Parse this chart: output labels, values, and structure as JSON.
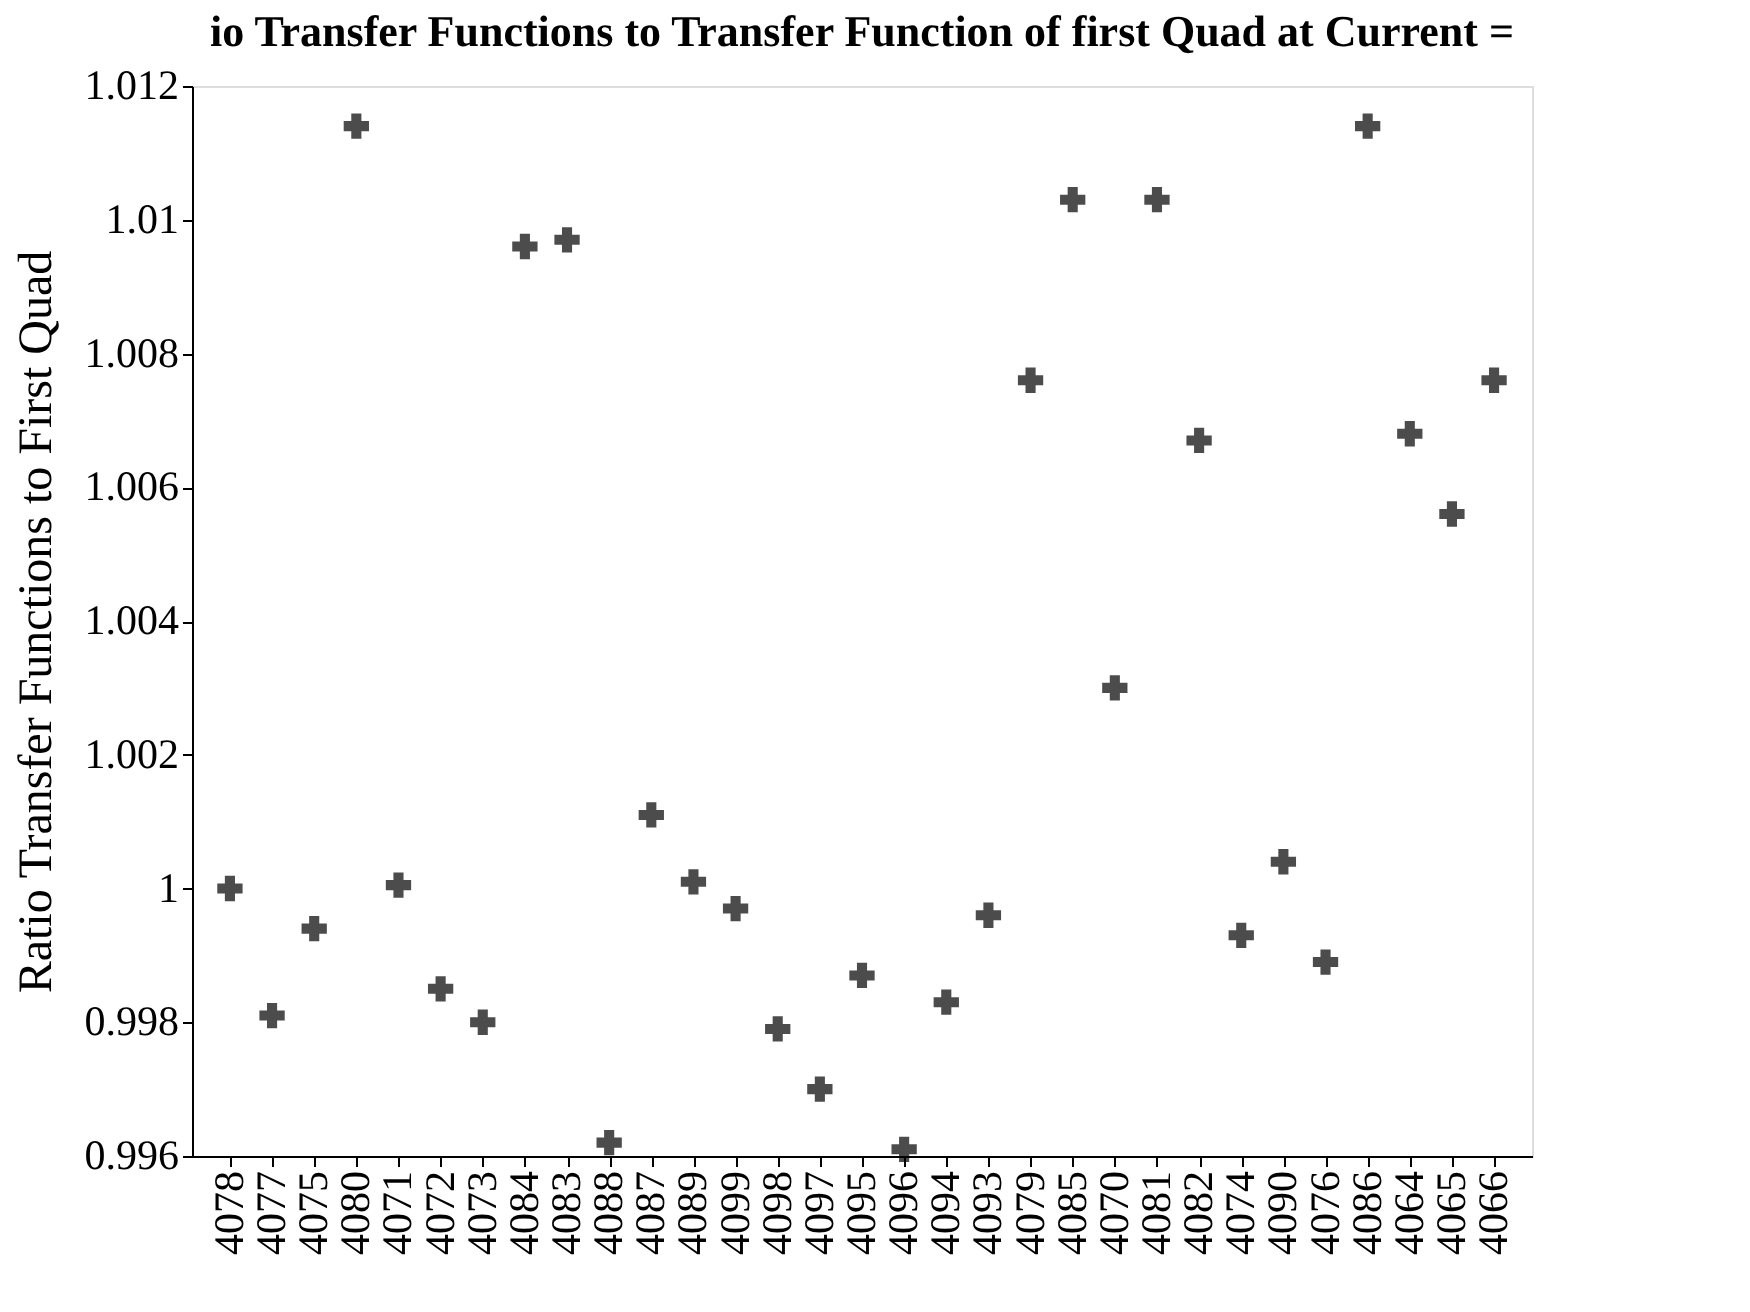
{
  "chart_data": {
    "type": "scatter",
    "title": "io Transfer Functions to Transfer Function of first Quad at Current  =",
    "ylabel": "Ratio Transfer Functions to First Quad",
    "categories": [
      "4078",
      "4077",
      "4075",
      "4080",
      "4071",
      "4072",
      "4073",
      "4084",
      "4083",
      "4088",
      "4087",
      "4089",
      "4099",
      "4098",
      "4097",
      "4095",
      "4096",
      "4094",
      "4093",
      "4079",
      "4085",
      "4070",
      "4081",
      "4082",
      "4074",
      "4090",
      "4076",
      "4086",
      "4064",
      "4065",
      "4066"
    ],
    "series": [
      {
        "color": "#000000",
        "values": [
          1.0,
          0.9981,
          0.9994,
          1.0114,
          1.00005,
          0.9985,
          0.998,
          1.0096,
          1.0097,
          0.9962,
          1.0011,
          1.0001,
          0.9997,
          0.9979,
          0.997,
          0.9987,
          0.9961,
          0.9983,
          0.9996,
          1.0076,
          1.0103,
          1.003,
          1.0103,
          1.0067,
          0.9993,
          1.0004,
          0.9989,
          1.0114,
          1.0068,
          1.0056,
          1.0076
        ]
      }
    ],
    "ylim": [
      0.996,
      1.012
    ],
    "yticks": [
      0.996,
      0.998,
      {
        "value": 1.0,
        "label": "1"
      },
      1.002,
      1.004,
      1.006,
      1.008,
      1.01,
      1.012
    ],
    "marker": "cross",
    "grid": false,
    "legend": false
  }
}
